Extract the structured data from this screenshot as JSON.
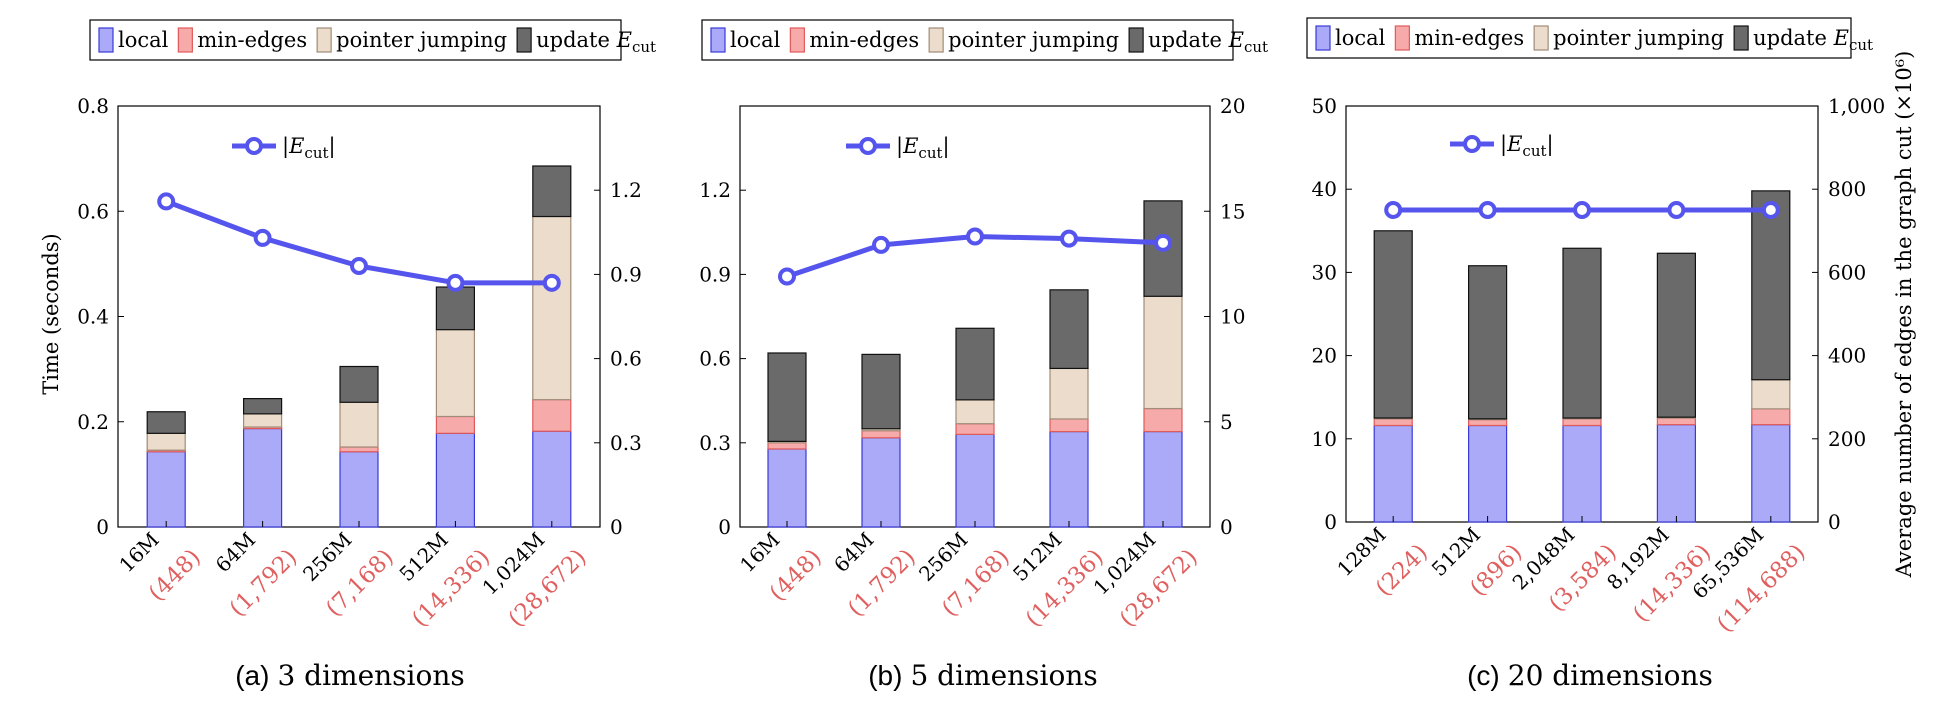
{
  "colors": {
    "local": "#aaaaf8",
    "local_edge": "#3a3ad8",
    "min_edges": "#f7aaaa",
    "min_edges_edge": "#e05a5a",
    "pointer_jumping": "#ecdccb",
    "pointer_jumping_edge": "#a08c78",
    "update_ecut": "#6a6a6a",
    "update_ecut_edge": "#111111",
    "ecut_line": "#5555ee",
    "paren_label": "#e06060"
  },
  "legend": {
    "local": "local",
    "min_edges": "min-edges",
    "pointer_jumping": "pointer jumping",
    "update_prefix": "update ",
    "update_E": "E",
    "update_sub": "cut",
    "ecut_bar_open": "|",
    "ecut_E": "E",
    "ecut_sub": "cut",
    "ecut_bar_close": "|"
  },
  "axis_titles": {
    "y_left": "Time (seconds)",
    "y_right": "Average number of edges in the graph cut (×10⁶)"
  },
  "chart_data": [
    {
      "type": "bar",
      "stacked": true,
      "caption_prefix": "(a)",
      "caption_text": "3 dimensions",
      "categories": [
        "16M",
        "64M",
        "256M",
        "512M",
        "1,024M"
      ],
      "category_counts": [
        "(448)",
        "(1,792)",
        "(7,168)",
        "(14,336)",
        "(28,672)"
      ],
      "ylim": [
        0,
        0.8
      ],
      "yticks": [
        "0",
        "0.2",
        "0.4",
        "0.6",
        "0.8"
      ],
      "yticks_values": [
        0,
        0.2,
        0.4,
        0.6,
        0.8
      ],
      "y2lim": [
        0,
        1.5
      ],
      "y2ticks": [
        "0",
        "0.3",
        "0.6",
        "0.9",
        "1.2"
      ],
      "y2ticks_values": [
        0,
        0.3,
        0.6,
        0.9,
        1.2
      ],
      "series": [
        {
          "name": "local",
          "values": [
            0.143,
            0.187,
            0.143,
            0.178,
            0.182
          ]
        },
        {
          "name": "min-edges",
          "values": [
            0.003,
            0.003,
            0.009,
            0.032,
            0.06
          ]
        },
        {
          "name": "pointer jumping",
          "values": [
            0.032,
            0.025,
            0.085,
            0.165,
            0.348
          ]
        },
        {
          "name": "update E_cut",
          "values": [
            0.041,
            0.029,
            0.068,
            0.081,
            0.096
          ]
        }
      ],
      "line": {
        "name": "|E_cut|",
        "values": [
          1.16,
          1.03,
          0.93,
          0.87,
          0.87
        ]
      }
    },
    {
      "type": "bar",
      "stacked": true,
      "caption_prefix": "(b)",
      "caption_text": "5 dimensions",
      "categories": [
        "16M",
        "64M",
        "256M",
        "512M",
        "1,024M"
      ],
      "category_counts": [
        "(448)",
        "(1,792)",
        "(7,168)",
        "(14,336)",
        "(28,672)"
      ],
      "ylim": [
        0,
        1.5
      ],
      "yticks": [
        "0",
        "0.3",
        "0.6",
        "0.9",
        "1.2"
      ],
      "yticks_values": [
        0,
        0.3,
        0.6,
        0.9,
        1.2
      ],
      "y2lim": [
        0,
        20
      ],
      "y2ticks": [
        "0",
        "5",
        "10",
        "15",
        "20"
      ],
      "y2ticks_values": [
        0,
        5,
        10,
        15,
        20
      ],
      "series": [
        {
          "name": "local",
          "values": [
            0.278,
            0.318,
            0.33,
            0.34,
            0.34
          ]
        },
        {
          "name": "min-edges",
          "values": [
            0.022,
            0.025,
            0.038,
            0.045,
            0.082
          ]
        },
        {
          "name": "pointer jumping",
          "values": [
            0.005,
            0.007,
            0.085,
            0.18,
            0.4
          ]
        },
        {
          "name": "update E_cut",
          "values": [
            0.315,
            0.265,
            0.255,
            0.28,
            0.34
          ]
        }
      ],
      "line": {
        "name": "|E_cut|",
        "values": [
          11.9,
          13.4,
          13.8,
          13.7,
          13.5
        ]
      }
    },
    {
      "type": "bar",
      "stacked": true,
      "caption_prefix": "(c)",
      "caption_text": "20 dimensions",
      "categories": [
        "128M",
        "512M",
        "2,048M",
        "8,192M",
        "65,536M"
      ],
      "category_counts": [
        "(224)",
        "(896)",
        "(3,584)",
        "(14,336)",
        "(114,688)"
      ],
      "ylim": [
        0,
        50
      ],
      "yticks": [
        "0",
        "10",
        "20",
        "30",
        "40",
        "50"
      ],
      "yticks_values": [
        0,
        10,
        20,
        30,
        40,
        50
      ],
      "y2lim": [
        0,
        1000
      ],
      "y2ticks": [
        "0",
        "200",
        "400",
        "600",
        "800",
        "1,000"
      ],
      "y2ticks_values": [
        0,
        200,
        400,
        600,
        800,
        1000
      ],
      "series": [
        {
          "name": "local",
          "values": [
            11.6,
            11.6,
            11.6,
            11.7,
            11.7
          ]
        },
        {
          "name": "min-edges",
          "values": [
            0.8,
            0.7,
            0.8,
            0.8,
            1.9
          ]
        },
        {
          "name": "pointer jumping",
          "values": [
            0.1,
            0.1,
            0.1,
            0.1,
            3.5
          ]
        },
        {
          "name": "update E_cut",
          "values": [
            22.5,
            18.4,
            20.4,
            19.7,
            22.7
          ]
        }
      ],
      "line": {
        "name": "|E_cut|",
        "values": [
          750,
          750,
          750,
          750,
          750
        ]
      }
    }
  ]
}
